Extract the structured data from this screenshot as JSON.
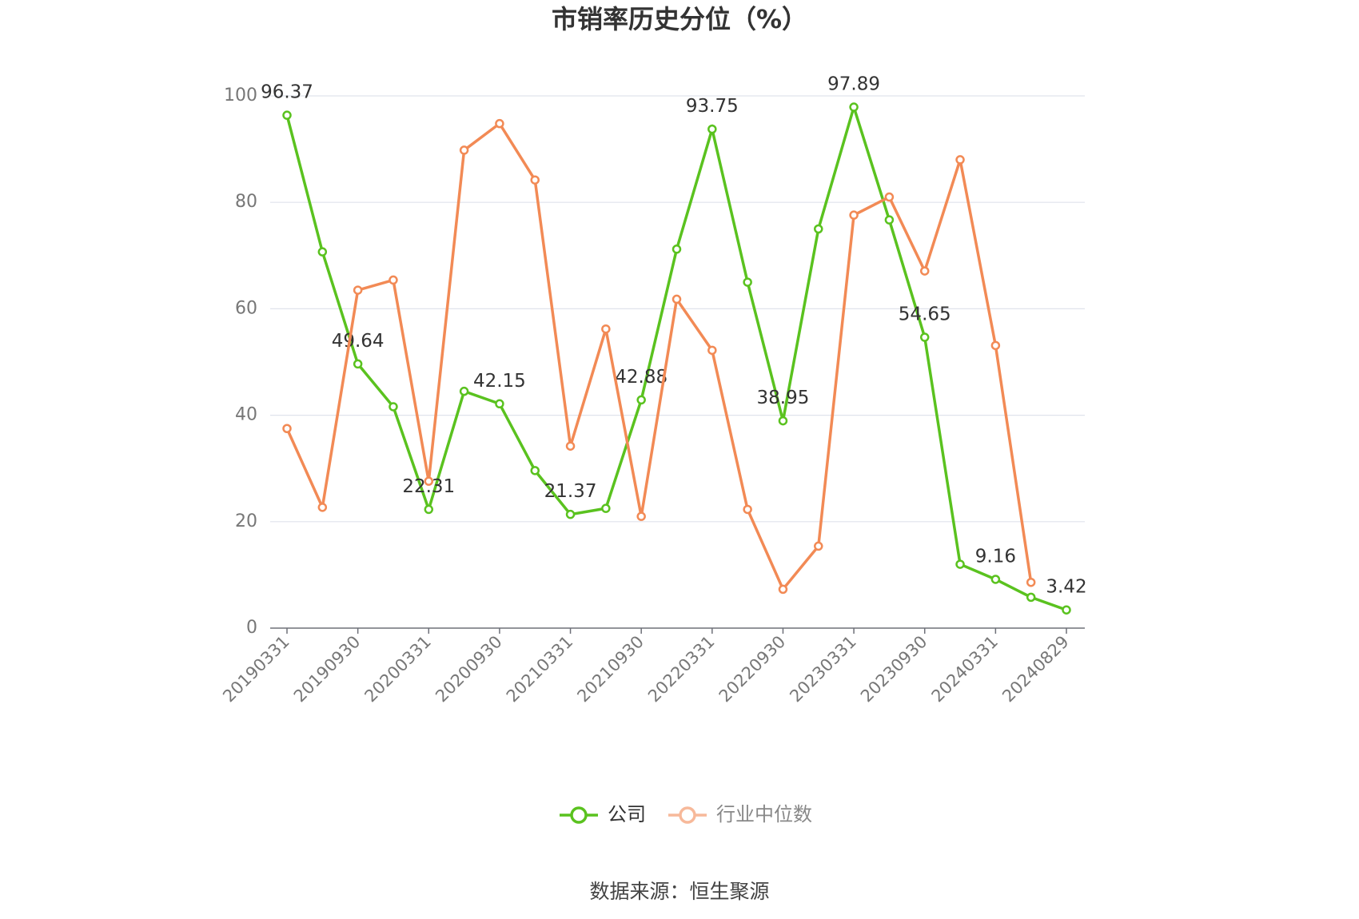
{
  "chart_data": {
    "type": "line",
    "title": "市销率历史分位（%）",
    "source": "数据来源：恒生聚源",
    "categories": [
      "20190331",
      null,
      "20190930",
      null,
      "20200331",
      null,
      "20200930",
      null,
      "20210331",
      null,
      "20210930",
      null,
      "20220331",
      null,
      "20220930",
      null,
      "20230331",
      null,
      "20230930",
      null,
      "20240331",
      null,
      "20240829"
    ],
    "series": [
      {
        "name": "公司",
        "color": "#5ac21f",
        "values": [
          96.37,
          70.7,
          49.64,
          41.6,
          22.31,
          44.5,
          42.15,
          29.6,
          21.37,
          22.5,
          42.88,
          71.2,
          93.75,
          65.0,
          38.95,
          75.0,
          97.89,
          76.7,
          54.65,
          12.0,
          9.16,
          5.8,
          3.42
        ]
      },
      {
        "name": "行业中位数",
        "color": "#f28a55",
        "values": [
          37.5,
          22.7,
          63.5,
          65.4,
          27.6,
          89.8,
          94.8,
          84.2,
          34.2,
          56.2,
          21.0,
          61.8,
          52.2,
          22.3,
          7.3,
          15.4,
          77.6,
          81.0,
          67.1,
          88.0,
          53.1,
          8.6,
          null
        ]
      }
    ],
    "ylim": [
      0,
      100
    ],
    "yticks": [
      0,
      20,
      40,
      60,
      80,
      100
    ],
    "grid": true,
    "legend": "bottom"
  }
}
